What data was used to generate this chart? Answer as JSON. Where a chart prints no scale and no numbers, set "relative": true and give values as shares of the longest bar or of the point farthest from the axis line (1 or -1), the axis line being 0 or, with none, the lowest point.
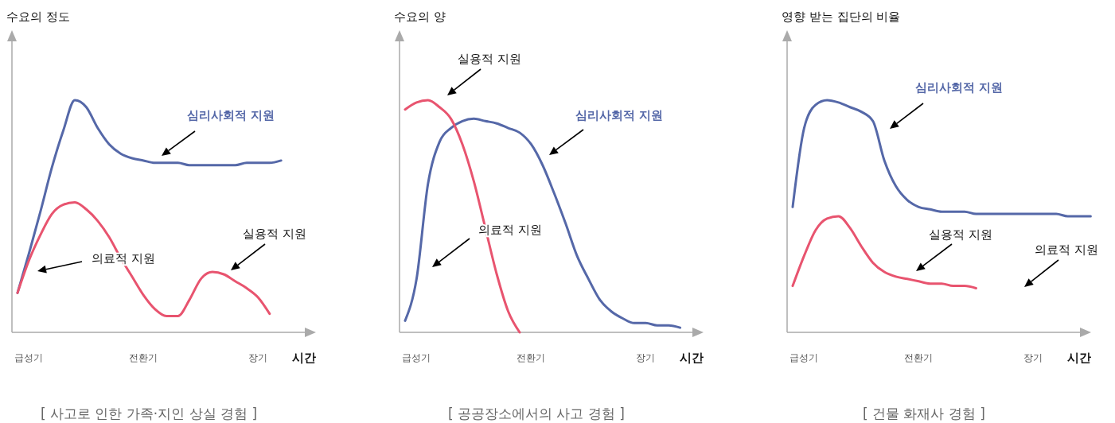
{
  "chart_data": [
    {
      "type": "line",
      "title": "[ 사고로 인한 가족·지인 상실 경험 ]",
      "ylabel": "수요의 정도",
      "xlabel": "시간",
      "relative": true,
      "categories": [
        null,
        "급성기",
        null,
        null,
        null,
        null,
        null,
        null,
        null,
        null,
        null,
        "전환기",
        null,
        null,
        null,
        null,
        null,
        null,
        null,
        null,
        null,
        "장기",
        null,
        null,
        null,
        null,
        null
      ],
      "series": [
        {
          "name": "심리사회적 지원",
          "color": "#5568a8",
          "values": [
            0.17,
            0.34,
            0.52,
            0.71,
            0.87,
            1.0,
            0.97,
            0.88,
            0.81,
            0.77,
            0.75,
            0.74,
            0.73,
            0.73,
            0.73,
            0.72,
            0.72,
            0.72,
            0.72,
            0.72,
            0.73,
            0.73,
            0.73,
            0.74,
            null,
            null,
            null
          ]
        },
        {
          "color": "#e8546f",
          "values": [
            0.17,
            0.31,
            0.42,
            0.51,
            0.55,
            0.56,
            0.53,
            0.48,
            0.41,
            0.32,
            0.24,
            0.16,
            0.1,
            0.07,
            0.07,
            0.14,
            0.23,
            0.26,
            0.25,
            0.22,
            0.19,
            0.15,
            0.08,
            null,
            null,
            null,
            null
          ]
        }
      ],
      "annotations": [
        "의료적 지원",
        "실용적 지원"
      ]
    },
    {
      "type": "line",
      "title": "[ 공공장소에서의 사고 경험 ]",
      "ylabel": "수요의 양",
      "xlabel": "시간",
      "relative": true,
      "categories": [
        null,
        "급성기",
        null,
        null,
        null,
        null,
        null,
        null,
        null,
        null,
        null,
        "전환기",
        null,
        null,
        null,
        null,
        null,
        null,
        null,
        null,
        null,
        "장기",
        null,
        null,
        null,
        null,
        null
      ],
      "series": [
        {
          "name": "심리사회적 지원",
          "color": "#5568a8",
          "values": [
            0.05,
            0.23,
            0.64,
            0.82,
            0.88,
            0.91,
            0.92,
            0.91,
            0.9,
            0.88,
            0.86,
            0.81,
            0.72,
            0.6,
            0.47,
            0.33,
            0.23,
            0.14,
            0.09,
            0.06,
            0.04,
            0.04,
            0.03,
            0.03,
            0.02,
            null,
            null
          ]
        },
        {
          "color": "#e8546f",
          "values": [
            0.96,
            0.99,
            1.0,
            0.97,
            0.92,
            0.81,
            0.65,
            0.45,
            0.25,
            0.09,
            0,
            null,
            null,
            null,
            null,
            null,
            null,
            null,
            null,
            null,
            null,
            null,
            null,
            null,
            null,
            null,
            null
          ]
        }
      ],
      "annotations": [
        "실용적 지원",
        "의료적 지원"
      ]
    },
    {
      "type": "line",
      "title": "[ 건물 화재사 경험 ]",
      "ylabel": "영향 받는 집단의 비율",
      "xlabel": "시간",
      "relative": true,
      "categories": [
        null,
        "급성기",
        null,
        null,
        null,
        null,
        null,
        null,
        null,
        null,
        null,
        "전환기",
        null,
        null,
        null,
        null,
        null,
        null,
        null,
        null,
        null,
        "장기",
        null,
        null,
        null,
        null,
        null
      ],
      "series": [
        {
          "name": "심리사회적 지원",
          "color": "#5568a8",
          "values": [
            0.54,
            0.88,
            0.98,
            1.0,
            0.99,
            0.97,
            0.95,
            0.91,
            0.74,
            0.63,
            0.57,
            0.54,
            0.53,
            0.52,
            0.52,
            0.52,
            0.51,
            0.51,
            0.51,
            0.51,
            0.51,
            0.51,
            0.51,
            0.51,
            0.5,
            0.5,
            0.5
          ]
        },
        {
          "color": "#e8546f",
          "values": [
            0.2,
            0.33,
            0.44,
            0.49,
            0.5,
            0.45,
            0.37,
            0.3,
            0.26,
            0.24,
            0.23,
            0.22,
            0.21,
            0.21,
            0.2,
            0.2,
            0.19,
            null,
            null,
            null,
            null,
            null,
            null,
            null,
            null,
            null,
            null
          ]
        }
      ],
      "annotations": [
        "실용적 지원",
        "의료적 지원"
      ]
    }
  ]
}
